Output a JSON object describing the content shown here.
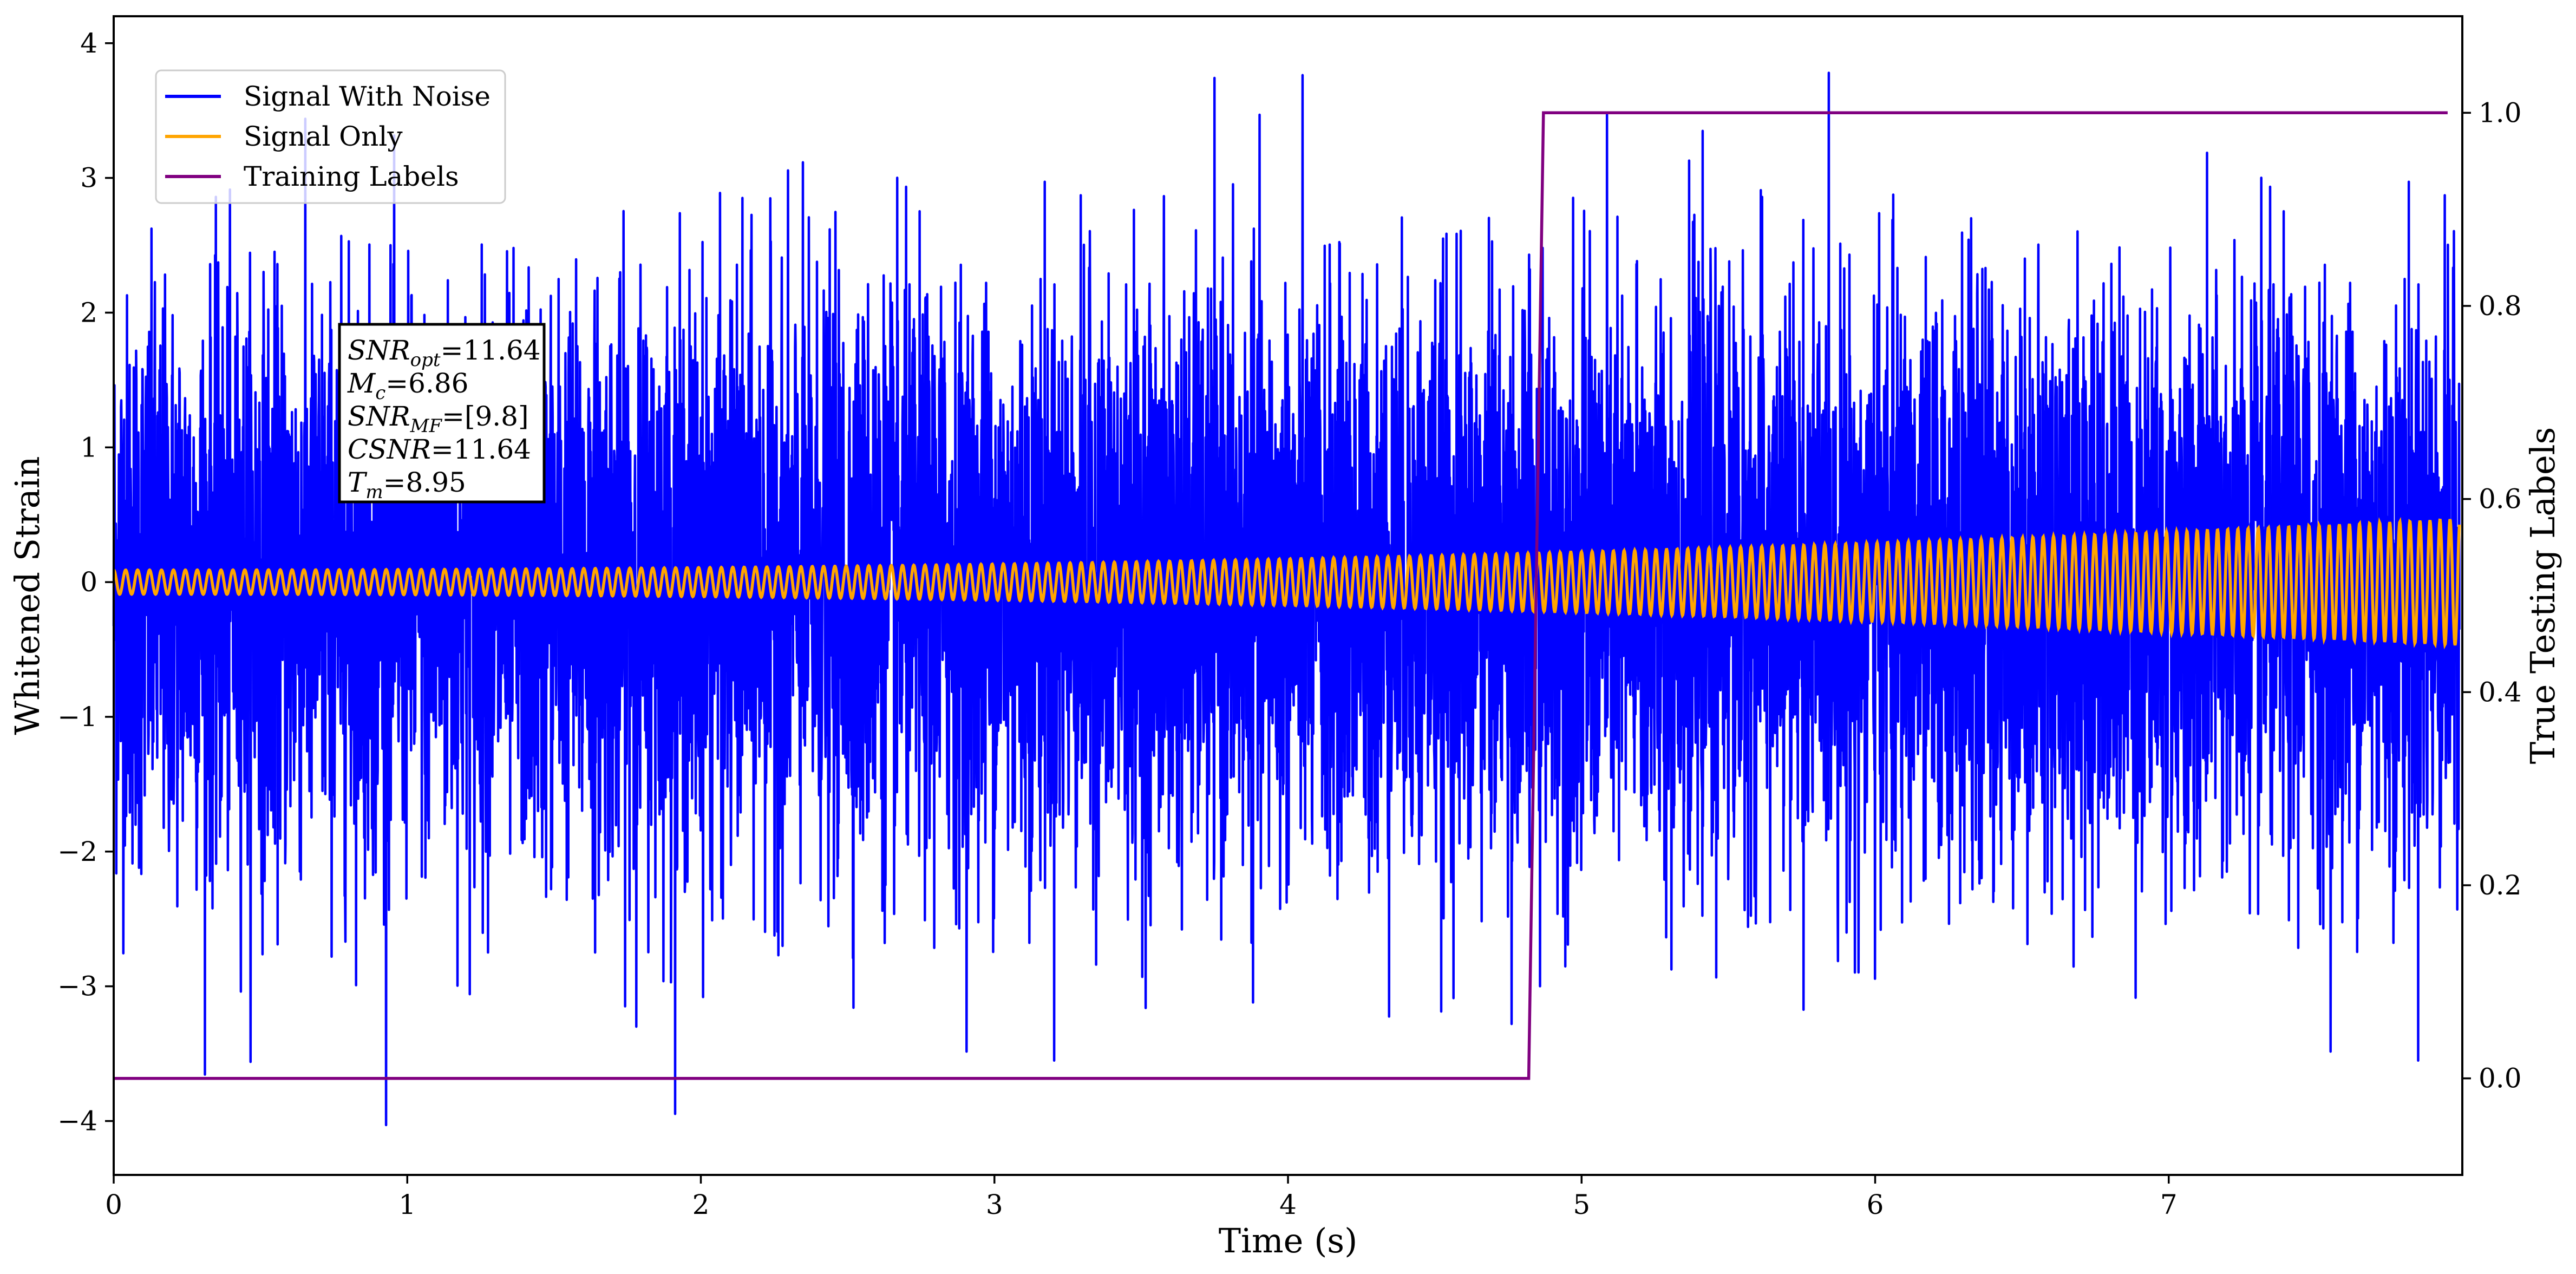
{
  "chart_data": {
    "type": "line",
    "xlabel": "Time (s)",
    "ylabel": "Whitened Strain",
    "y2label": "True Testing Labels",
    "xlim": [
      0,
      8.0
    ],
    "ylim": [
      -4.4,
      4.2
    ],
    "y2lim": [
      -0.1,
      1.1
    ],
    "x_ticks": [
      0,
      1,
      2,
      3,
      4,
      5,
      6,
      7
    ],
    "x_tick_labels": [
      "0",
      "1",
      "2",
      "3",
      "4",
      "5",
      "6",
      "7"
    ],
    "y_ticks": [
      -4,
      -3,
      -2,
      -1,
      0,
      1,
      2,
      3,
      4
    ],
    "y_tick_labels": [
      "−4",
      "−3",
      "−2",
      "−1",
      "0",
      "1",
      "2",
      "3",
      "4"
    ],
    "y2_ticks": [
      0.0,
      0.2,
      0.4,
      0.6,
      0.8,
      1.0
    ],
    "y2_tick_labels": [
      "0.0",
      "0.2",
      "0.4",
      "0.6",
      "0.8",
      "1.0"
    ],
    "grid": false,
    "legend_position": "top-left",
    "legend": [
      {
        "label": "Signal With Noise",
        "color": "#0000ff"
      },
      {
        "label": "Signal Only",
        "color": "#ffa500"
      },
      {
        "label": "Training Labels",
        "color": "#800080"
      }
    ],
    "series": [
      {
        "name": "Signal With Noise",
        "color": "#0000ff",
        "axis": "left",
        "description_range": "noisy whitened strain spanning roughly -4.0 to 3.8",
        "x_range": [
          0,
          7.99
        ],
        "approx_std": 1.0,
        "y_min": -4.03,
        "y_max": 3.78
      },
      {
        "name": "Signal Only",
        "color": "#ffa500",
        "axis": "left",
        "x_range": [
          0,
          7.99
        ],
        "amplitude_start": 0.09,
        "amplitude_end": 0.47,
        "cycles_visible": 215
      },
      {
        "name": "Training Labels",
        "color": "#800080",
        "axis": "right",
        "x": [
          0.0,
          4.82,
          4.87,
          7.95
        ],
        "y": [
          0.0,
          0.0,
          1.0,
          1.0
        ]
      }
    ],
    "annotation": {
      "lines": [
        {
          "pre": "SNR",
          "sub": "opt",
          "post": "=11.64"
        },
        {
          "pre": "M",
          "sub": "c",
          "post": "=6.86"
        },
        {
          "pre": "SNR",
          "sub": "MF",
          "post": "=[9.8]"
        },
        {
          "pre": "CSNR",
          "sub": "",
          "post": "=11.64"
        },
        {
          "pre": "T",
          "sub": "m",
          "post": "=8.95"
        }
      ]
    }
  }
}
